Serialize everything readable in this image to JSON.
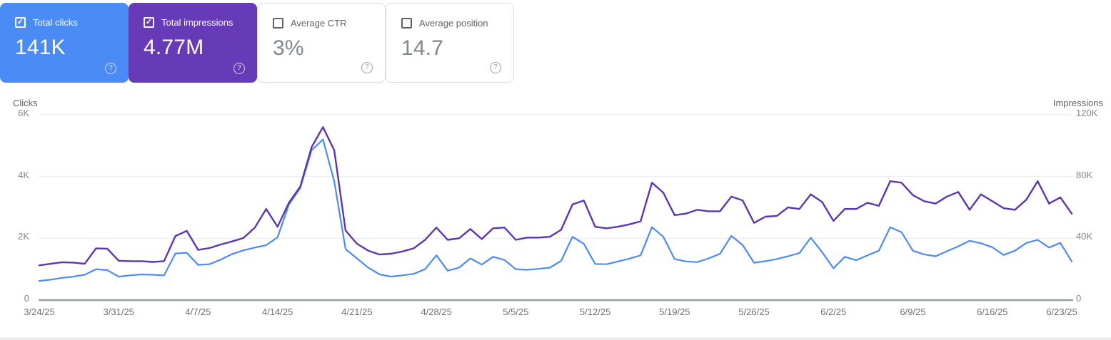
{
  "icons": {
    "help": "?",
    "check": "✓"
  },
  "cards": [
    {
      "name": "total-clicks",
      "label": "Total clicks",
      "value": "141K",
      "checked": true,
      "background": "#4b8bf5"
    },
    {
      "name": "total-impressions",
      "label": "Total impressions",
      "value": "4.77M",
      "checked": true,
      "background": "#673ab7"
    },
    {
      "name": "average-ctr",
      "label": "Average CTR",
      "value": "3%",
      "checked": false,
      "background": ""
    },
    {
      "name": "average-position",
      "label": "Average position",
      "value": "14.7",
      "checked": false,
      "background": ""
    }
  ],
  "chart_data": {
    "type": "line",
    "x_interval": "daily",
    "x_start": "3/24/25",
    "x_end": "6/23/25",
    "x_tick_labels": [
      "3/24/25",
      "3/31/25",
      "4/7/25",
      "4/14/25",
      "4/21/25",
      "4/28/25",
      "5/5/25",
      "5/12/25",
      "5/19/25",
      "5/26/25",
      "6/2/25",
      "6/9/25",
      "6/16/25",
      "6/23/25"
    ],
    "grid": "horizontal",
    "legend": "none",
    "left_axis": {
      "title": "Clicks",
      "max": 6000,
      "ticks": [
        {
          "label": "0",
          "value": 0
        },
        {
          "label": "2K",
          "value": 2000
        },
        {
          "label": "4K",
          "value": 4000
        },
        {
          "label": "6K",
          "value": 6000
        }
      ]
    },
    "right_axis": {
      "title": "Impressions",
      "max": 120000,
      "ticks": [
        {
          "label": "0",
          "value": 0
        },
        {
          "label": "40K",
          "value": 40000
        },
        {
          "label": "80K",
          "value": 80000
        },
        {
          "label": "120K",
          "value": 120000
        }
      ]
    },
    "series": [
      {
        "name": "Clicks",
        "axis": "left",
        "color": "#4c8bf5",
        "values": [
          620,
          660,
          720,
          760,
          820,
          1000,
          970,
          760,
          800,
          830,
          820,
          800,
          1510,
          1530,
          1140,
          1160,
          1310,
          1490,
          1610,
          1700,
          1780,
          2030,
          3090,
          3630,
          4850,
          5200,
          3850,
          1650,
          1350,
          1050,
          830,
          760,
          800,
          850,
          1000,
          1450,
          950,
          1050,
          1350,
          1150,
          1400,
          1300,
          1000,
          980,
          1010,
          1050,
          1270,
          2050,
          1820,
          1170,
          1160,
          1250,
          1340,
          1450,
          2360,
          2050,
          1330,
          1250,
          1230,
          1350,
          1500,
          2080,
          1780,
          1210,
          1260,
          1330,
          1420,
          1520,
          2020,
          1550,
          1030,
          1400,
          1290,
          1450,
          1600,
          2360,
          2200,
          1600,
          1480,
          1420,
          1580,
          1740,
          1920,
          1840,
          1710,
          1460,
          1600,
          1850,
          1950,
          1700,
          1850,
          1250
        ]
      },
      {
        "name": "Impressions",
        "axis": "right",
        "color": "#5e35b1",
        "values": [
          22500,
          23500,
          24500,
          24300,
          23500,
          33500,
          33300,
          25500,
          25200,
          25200,
          24700,
          25200,
          41500,
          44800,
          32500,
          33700,
          36000,
          38000,
          40200,
          47000,
          59000,
          47500,
          63000,
          73500,
          99000,
          112000,
          97000,
          45000,
          36500,
          32000,
          29500,
          30000,
          31500,
          33500,
          39000,
          47000,
          39000,
          40000,
          46000,
          39500,
          46500,
          47000,
          39000,
          40500,
          40500,
          41000,
          45500,
          62000,
          64500,
          47500,
          46500,
          47500,
          49000,
          51000,
          76000,
          69500,
          55000,
          56000,
          58500,
          57500,
          57500,
          67000,
          64500,
          50000,
          54000,
          54500,
          60000,
          59000,
          68500,
          63500,
          51300,
          59000,
          59000,
          63000,
          61000,
          77000,
          76000,
          68000,
          64000,
          62500,
          67000,
          70000,
          58500,
          68500,
          64000,
          59500,
          58500,
          65000,
          77000,
          62500,
          66500,
          56000
        ]
      }
    ]
  },
  "style": {
    "gridline_color": "#e9eaec",
    "axis_line_color": "#9aa0a6"
  }
}
